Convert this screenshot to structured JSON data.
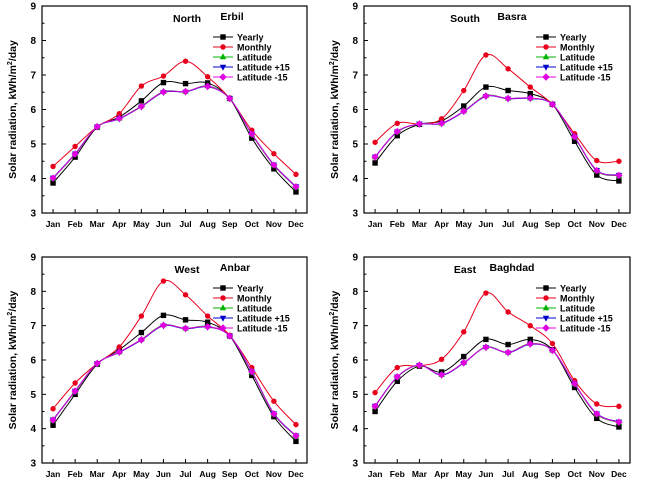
{
  "colors": {
    "Yearly": "#000000",
    "Monthly": "#e8001c",
    "Latitude": "#00b400",
    "Latitude +15": "#0000cc",
    "Latitude -15": "#e000e0"
  },
  "markers": {
    "Yearly": "square",
    "Monthly": "circle",
    "Latitude": "triangle-up",
    "Latitude +15": "triangle-down",
    "Latitude -15": "diamond"
  },
  "chart_data": [
    {
      "type": "line",
      "region": "North",
      "city": "Erbil",
      "ylabel": "Solar radiation, kWh/m2/day",
      "ylim": [
        3,
        9
      ],
      "yticks": [
        3,
        4,
        5,
        6,
        7,
        8,
        9
      ],
      "legend_position": "top-right",
      "categories": [
        "Jan",
        "Feb",
        "Mar",
        "Apr",
        "May",
        "Jun",
        "Jul",
        "Aug",
        "Sep",
        "Oct",
        "Nov",
        "Dec"
      ],
      "series": [
        {
          "name": "Yearly",
          "values": [
            3.87,
            4.62,
            5.49,
            5.78,
            6.25,
            6.78,
            6.75,
            6.77,
            6.32,
            5.17,
            4.28,
            3.61
          ]
        },
        {
          "name": "Monthly",
          "values": [
            4.35,
            4.93,
            5.5,
            5.88,
            6.68,
            6.97,
            7.4,
            6.95,
            6.32,
            5.4,
            4.72,
            4.12
          ]
        },
        {
          "name": "Latitude",
          "values": [
            4.0,
            4.7,
            5.5,
            5.74,
            6.1,
            6.52,
            6.52,
            6.68,
            6.32,
            5.28,
            4.38,
            3.75
          ]
        },
        {
          "name": "Latitude +15",
          "values": [
            4.02,
            4.72,
            5.5,
            5.73,
            6.08,
            6.5,
            6.51,
            6.66,
            6.32,
            5.29,
            4.4,
            3.77
          ]
        },
        {
          "name": "Latitude -15",
          "values": [
            4.01,
            4.71,
            5.5,
            5.74,
            6.09,
            6.51,
            6.52,
            6.67,
            6.32,
            5.29,
            4.39,
            3.76
          ]
        }
      ]
    },
    {
      "type": "line",
      "region": "South",
      "city": "Basra",
      "ylabel": "Solar radiation, kWh/m2/day",
      "ylim": [
        3,
        9
      ],
      "yticks": [
        3,
        4,
        5,
        6,
        7,
        8,
        9
      ],
      "legend_position": "top-right",
      "categories": [
        "Jan",
        "Feb",
        "Mar",
        "Apr",
        "May",
        "Jun",
        "Jul",
        "Aug",
        "Sep",
        "Oct",
        "Nov",
        "Dec"
      ],
      "series": [
        {
          "name": "Yearly",
          "values": [
            4.45,
            5.24,
            5.57,
            5.67,
            6.1,
            6.65,
            6.55,
            6.46,
            6.15,
            5.08,
            4.1,
            3.93
          ]
        },
        {
          "name": "Monthly",
          "values": [
            5.05,
            5.6,
            5.58,
            5.73,
            6.55,
            7.58,
            7.18,
            6.65,
            6.15,
            5.3,
            4.52,
            4.5
          ]
        },
        {
          "name": "Latitude",
          "values": [
            4.62,
            5.35,
            5.58,
            5.6,
            5.95,
            6.4,
            6.32,
            6.33,
            6.15,
            5.2,
            4.22,
            4.08
          ]
        },
        {
          "name": "Latitude +15",
          "values": [
            4.63,
            5.36,
            5.58,
            5.59,
            5.94,
            6.38,
            6.31,
            6.32,
            6.15,
            5.21,
            4.24,
            4.1
          ]
        },
        {
          "name": "Latitude -15",
          "values": [
            4.62,
            5.36,
            5.58,
            5.6,
            5.95,
            6.39,
            6.32,
            6.33,
            6.15,
            5.21,
            4.23,
            4.09
          ]
        }
      ]
    },
    {
      "type": "line",
      "region": "West",
      "city": "Anbar",
      "ylabel": "Solar radiation, kWh/m2/day",
      "ylim": [
        3,
        9
      ],
      "yticks": [
        3,
        4,
        5,
        6,
        7,
        8,
        9
      ],
      "legend_position": "top-right",
      "categories": [
        "Jan",
        "Feb",
        "Mar",
        "Apr",
        "May",
        "Jun",
        "Jul",
        "Aug",
        "Sep",
        "Oct",
        "Nov",
        "Dec"
      ],
      "series": [
        {
          "name": "Yearly",
          "values": [
            4.1,
            5.0,
            5.88,
            6.3,
            6.8,
            7.3,
            7.17,
            7.1,
            6.7,
            5.55,
            4.35,
            3.63
          ]
        },
        {
          "name": "Monthly",
          "values": [
            4.58,
            5.33,
            5.9,
            6.38,
            7.28,
            8.3,
            7.9,
            7.28,
            6.72,
            5.78,
            4.8,
            4.12
          ]
        },
        {
          "name": "Latitude",
          "values": [
            4.25,
            5.08,
            5.9,
            6.23,
            6.6,
            7.02,
            6.92,
            6.98,
            6.7,
            5.65,
            4.42,
            3.78
          ]
        },
        {
          "name": "Latitude +15",
          "values": [
            4.26,
            5.1,
            5.9,
            6.22,
            6.58,
            7.0,
            6.91,
            6.96,
            6.7,
            5.66,
            4.44,
            3.8
          ]
        },
        {
          "name": "Latitude -15",
          "values": [
            4.25,
            5.09,
            5.9,
            6.23,
            6.59,
            7.01,
            6.92,
            6.97,
            6.7,
            5.66,
            4.43,
            3.79
          ]
        }
      ]
    },
    {
      "type": "line",
      "region": "East",
      "city": "Baghdad",
      "ylabel": "Solar radiation, kWh/m2/day",
      "ylim": [
        3,
        9
      ],
      "yticks": [
        3,
        4,
        5,
        6,
        7,
        8,
        9
      ],
      "legend_position": "top-right",
      "categories": [
        "Jan",
        "Feb",
        "Mar",
        "Apr",
        "May",
        "Jun",
        "Jul",
        "Aug",
        "Sep",
        "Oct",
        "Nov",
        "Dec"
      ],
      "series": [
        {
          "name": "Yearly",
          "values": [
            4.5,
            5.38,
            5.82,
            5.65,
            6.1,
            6.6,
            6.45,
            6.6,
            6.3,
            5.2,
            4.3,
            4.05
          ]
        },
        {
          "name": "Monthly",
          "values": [
            5.05,
            5.78,
            5.83,
            6.02,
            6.82,
            7.95,
            7.4,
            7.0,
            6.48,
            5.4,
            4.72,
            4.65
          ]
        },
        {
          "name": "Latitude",
          "values": [
            4.65,
            5.5,
            5.85,
            5.57,
            5.92,
            6.38,
            6.22,
            6.48,
            6.28,
            5.3,
            4.42,
            4.18
          ]
        },
        {
          "name": "Latitude +15",
          "values": [
            4.66,
            5.51,
            5.85,
            5.56,
            5.91,
            6.37,
            6.21,
            6.46,
            6.28,
            5.31,
            4.44,
            4.2
          ]
        },
        {
          "name": "Latitude -15",
          "values": [
            4.65,
            5.51,
            5.85,
            5.57,
            5.92,
            6.37,
            6.22,
            6.47,
            6.28,
            5.31,
            4.43,
            4.19
          ]
        }
      ]
    }
  ]
}
